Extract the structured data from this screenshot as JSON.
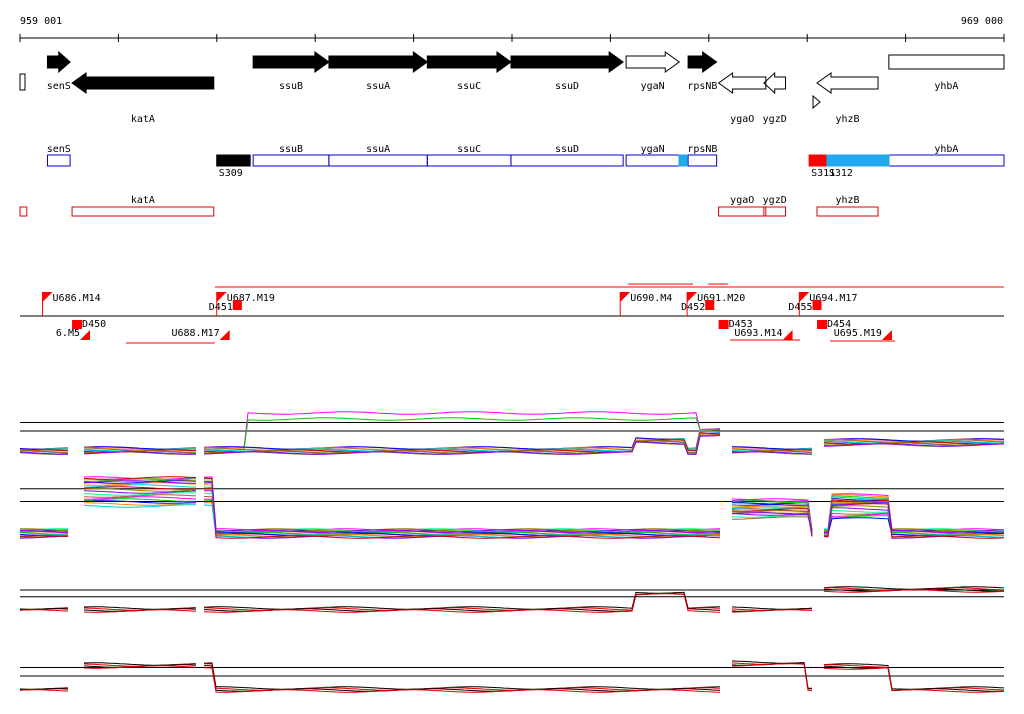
{
  "coords": {
    "start_label": "959 001",
    "end_label": "969 000",
    "start": 959001,
    "end": 969000
  },
  "colors": {
    "gene_fill": "#000000",
    "gene_outline": "#000000",
    "blue": "#0000cc",
    "red": "#dd0000",
    "light_blue": "#22aaee",
    "bright_red": "#ff0000"
  },
  "genes_forward": [
    {
      "name": "senS",
      "start": 959280,
      "end": 959510
    },
    {
      "name": "ssuB",
      "start": 961370,
      "end": 962140
    },
    {
      "name": "ssuA",
      "start": 962140,
      "end": 963140
    },
    {
      "name": "ssuC",
      "start": 963140,
      "end": 963990
    },
    {
      "name": "ssuD",
      "start": 963990,
      "end": 965130
    },
    {
      "name": "ygaN",
      "start": 965160,
      "end": 965700,
      "hollow": true
    },
    {
      "name": "rpsNB",
      "start": 965790,
      "end": 966080
    },
    {
      "name": "yhbA",
      "start": 967830,
      "end": 969000,
      "hollow": true,
      "no_tip": true
    }
  ],
  "genes_reverse": [
    {
      "name": "katA",
      "start": 959530,
      "end": 960970
    },
    {
      "name": "ygaO",
      "start": 966100,
      "end": 966580,
      "hollow": true
    },
    {
      "name": "ygzD",
      "start": 966560,
      "end": 966780,
      "hollow": true
    },
    {
      "name": "yhzB",
      "start": 967100,
      "end": 967720,
      "hollow": true
    }
  ],
  "blue_features": [
    {
      "name": "senS",
      "start": 959280,
      "end": 959510
    },
    {
      "name": "ssuB",
      "start": 961370,
      "end": 962140
    },
    {
      "name": "ssuA",
      "start": 962140,
      "end": 963140
    },
    {
      "name": "ssuC",
      "start": 963140,
      "end": 963990
    },
    {
      "name": "ssuD",
      "start": 963990,
      "end": 965130
    },
    {
      "name": "ygaN",
      "start": 965160,
      "end": 965700
    },
    {
      "name": "rpsNB",
      "start": 965790,
      "end": 966080
    },
    {
      "name": "yhbA",
      "start": 967830,
      "end": 969000
    }
  ],
  "segments": [
    {
      "name": "S309",
      "start": 961000,
      "end": 961340,
      "fill": "#000000"
    },
    {
      "name": "S311",
      "start": 967020,
      "end": 967200,
      "fill": "#ff0000"
    },
    {
      "name": "S312",
      "start": 967200,
      "end": 967830,
      "fill": "#22aaee"
    },
    {
      "name": "",
      "start": 965700,
      "end": 965780,
      "fill": "#22aaee"
    }
  ],
  "red_features": [
    {
      "name": "",
      "start": 959001,
      "end": 959070
    },
    {
      "name": "katA",
      "start": 959530,
      "end": 960970
    },
    {
      "name": "ygaO",
      "start": 966100,
      "end": 966580
    },
    {
      "name": "ygzD",
      "start": 966560,
      "end": 966780
    },
    {
      "name": "yhzB",
      "start": 967100,
      "end": 967720
    }
  ],
  "upper_labels": [
    {
      "text": "U686.M14",
      "start": 959230
    },
    {
      "text": "U687.M19",
      "start": 961000
    },
    {
      "text": "U690.M4",
      "start": 965100
    },
    {
      "text": "U691.M20",
      "start": 965780
    },
    {
      "text": "U694.M17",
      "start": 966920
    },
    {
      "text": "D451",
      "start": 960900
    },
    {
      "text": "D452",
      "start": 965700
    },
    {
      "text": "D455",
      "start": 966790
    }
  ],
  "lower_labels": [
    {
      "text": "D450",
      "start": 959530
    },
    {
      "text": "U688.M17",
      "start": 960420
    },
    {
      "text": "D453",
      "start": 966100
    },
    {
      "text": "U693.M14",
      "start": 966140
    },
    {
      "text": "D454",
      "start": 967100
    },
    {
      "text": "U695.M19",
      "start": 967150
    },
    {
      "text": "6.M5",
      "start": 959001
    }
  ]
}
